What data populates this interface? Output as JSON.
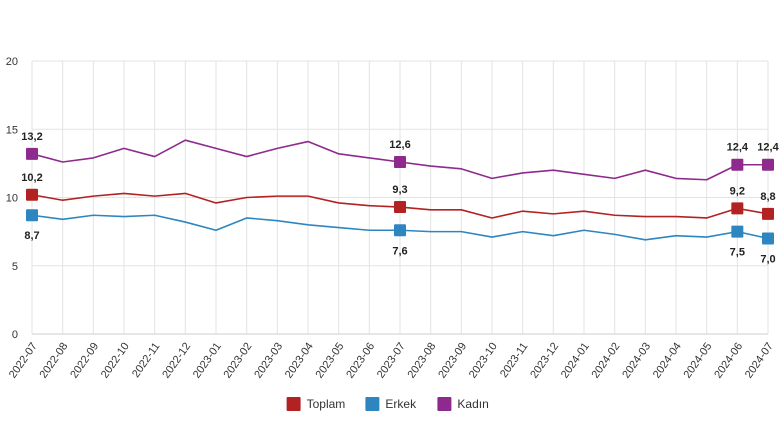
{
  "chart_data": {
    "type": "line",
    "ylim": [
      0,
      20
    ],
    "yticks": [
      "0",
      "5",
      "10",
      "15",
      "20"
    ],
    "ytick_values": [
      0,
      5,
      10,
      15,
      20
    ],
    "grid": true,
    "legend_position": "bottom",
    "categories": [
      "2022-07",
      "2022-08",
      "2022-09",
      "2022-10",
      "2022-11",
      "2022-12",
      "2023-01",
      "2023-02",
      "2023-03",
      "2023-04",
      "2023-05",
      "2023-06",
      "2023-07",
      "2023-08",
      "2023-09",
      "2023-10",
      "2023-11",
      "2023-12",
      "2024-01",
      "2024-02",
      "2024-03",
      "2024-04",
      "2024-05",
      "2024-06",
      "2024-07"
    ],
    "series": [
      {
        "name": "Toplam",
        "color": "#b22222",
        "values": [
          10.2,
          9.8,
          10.1,
          10.3,
          10.1,
          10.3,
          9.6,
          10.0,
          10.1,
          10.1,
          9.6,
          9.4,
          9.3,
          9.1,
          9.1,
          8.5,
          9.0,
          8.8,
          9.0,
          8.7,
          8.6,
          8.6,
          8.5,
          9.2,
          8.8
        ],
        "labels": [
          {
            "index": 0,
            "text": "10,2",
            "position": "above"
          },
          {
            "index": 12,
            "text": "9,3",
            "position": "above"
          },
          {
            "index": 23,
            "text": "9,2",
            "position": "above"
          },
          {
            "index": 24,
            "text": "8,8",
            "position": "above"
          }
        ]
      },
      {
        "name": "Erkek",
        "color": "#2e86c1",
        "values": [
          8.7,
          8.4,
          8.7,
          8.6,
          8.7,
          8.2,
          7.6,
          8.5,
          8.3,
          8.0,
          7.8,
          7.6,
          7.6,
          7.5,
          7.5,
          7.1,
          7.5,
          7.2,
          7.6,
          7.3,
          6.9,
          7.2,
          7.1,
          7.5,
          7.0
        ],
        "labels": [
          {
            "index": 0,
            "text": "8,7",
            "position": "below"
          },
          {
            "index": 12,
            "text": "7,6",
            "position": "below"
          },
          {
            "index": 23,
            "text": "7,5",
            "position": "below"
          },
          {
            "index": 24,
            "text": "7,0",
            "position": "below"
          }
        ]
      },
      {
        "name": "Kadın",
        "color": "#8e2a8e",
        "values": [
          13.2,
          12.6,
          12.9,
          13.6,
          13.0,
          14.2,
          13.6,
          13.0,
          13.6,
          14.1,
          13.2,
          12.9,
          12.6,
          12.3,
          12.1,
          11.4,
          11.8,
          12.0,
          11.7,
          11.4,
          12.0,
          11.4,
          11.3,
          12.4,
          12.4
        ],
        "labels": [
          {
            "index": 0,
            "text": "13,2",
            "position": "above"
          },
          {
            "index": 12,
            "text": "12,6",
            "position": "above"
          },
          {
            "index": 23,
            "text": "12,4",
            "position": "above"
          },
          {
            "index": 24,
            "text": "12,4",
            "position": "above"
          }
        ]
      }
    ]
  }
}
